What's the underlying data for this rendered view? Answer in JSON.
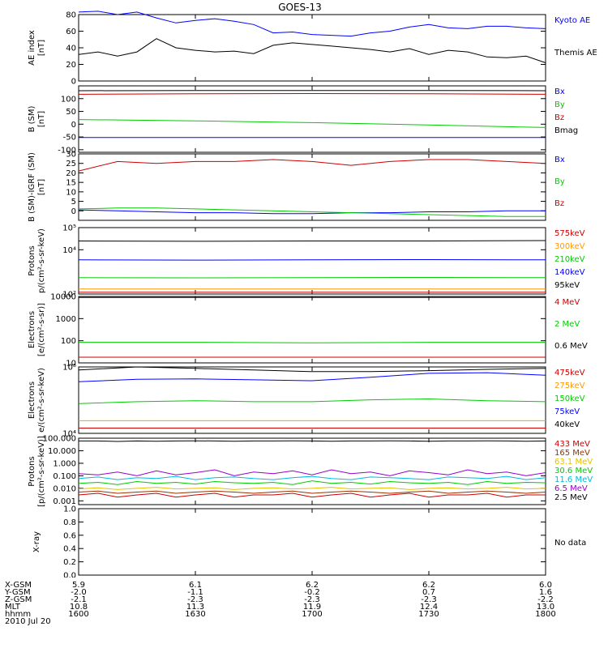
{
  "figure": {
    "title": "GOES-13",
    "date": "2010 Jul 20"
  },
  "chart_data": [
    {
      "type": "line",
      "panel": "AE index",
      "ylabel": [
        "AE index",
        "[nT]"
      ],
      "ylim": [
        0,
        80
      ],
      "scale": "linear",
      "ticks": [
        0,
        20,
        40,
        60,
        80
      ],
      "tick_labels": [
        "0",
        "20",
        "40",
        "60",
        "80"
      ],
      "x": [
        1600,
        1605,
        1610,
        1615,
        1620,
        1625,
        1630,
        1635,
        1640,
        1645,
        1650,
        1655,
        1700,
        1705,
        1710,
        1715,
        1720,
        1725,
        1730,
        1735,
        1740,
        1745,
        1750,
        1755,
        1800
      ],
      "series": [
        {
          "name": "Kyoto AE",
          "color": "#0000ff",
          "values": [
            83,
            84,
            80,
            83,
            76,
            70,
            73,
            75,
            72,
            68,
            58,
            59,
            56,
            55,
            54,
            58,
            60,
            65,
            68,
            64,
            63,
            66,
            66,
            64,
            63
          ]
        },
        {
          "name": "Themis AE",
          "color": "#000000",
          "values": [
            32,
            35,
            30,
            35,
            51,
            40,
            37,
            35,
            36,
            33,
            43,
            46,
            44,
            42,
            40,
            38,
            35,
            39,
            32,
            37,
            35,
            29,
            28,
            30,
            22
          ]
        }
      ]
    },
    {
      "type": "line",
      "panel": "B (SM)",
      "ylabel": [
        "B (SM)",
        "[nT]"
      ],
      "ylim": [
        -110,
        150
      ],
      "scale": "linear",
      "ticks": [
        -100,
        -50,
        0,
        50,
        100
      ],
      "tick_labels": [
        "-100",
        "-50",
        "0",
        "50",
        "100"
      ],
      "x": [
        1600,
        1630,
        1700,
        1730,
        1800
      ],
      "series": [
        {
          "name": "Bx",
          "color": "#0000ff",
          "values": [
            -52,
            -52,
            -52,
            -52,
            -52
          ]
        },
        {
          "name": "By",
          "color": "#00cc00",
          "values": [
            18,
            13,
            6,
            -3,
            -13
          ]
        },
        {
          "name": "Bz",
          "color": "#cc0000",
          "values": [
            117,
            119,
            120,
            119,
            117
          ]
        },
        {
          "name": "Bmag",
          "color": "#000000",
          "values": [
            131,
            132,
            132,
            132,
            131
          ]
        }
      ]
    },
    {
      "type": "line",
      "panel": "B (SM)-IGRF (SM)",
      "ylabel": [
        "B (SM)-IGRF (SM)",
        "[nT]"
      ],
      "ylim": [
        -5,
        30
      ],
      "scale": "linear",
      "ticks": [
        0,
        5,
        10,
        15,
        20,
        25,
        30
      ],
      "tick_labels": [
        "0",
        "5",
        "10",
        "15",
        "20",
        "25",
        "30"
      ],
      "x": [
        1600,
        1610,
        1620,
        1630,
        1640,
        1650,
        1700,
        1710,
        1720,
        1730,
        1740,
        1750,
        1800
      ],
      "series": [
        {
          "name": "Bx",
          "color": "#0000ff",
          "values": [
            0.5,
            0,
            -0.5,
            -1,
            -1,
            -1.5,
            -1.5,
            -1,
            -1,
            -0.5,
            -0.5,
            0,
            0
          ]
        },
        {
          "name": "By",
          "color": "#00cc00",
          "values": [
            1,
            1.5,
            1.5,
            1,
            0.5,
            0,
            -0.5,
            -1,
            -1.5,
            -2,
            -2.5,
            -3,
            -3
          ]
        },
        {
          "name": "Bz",
          "color": "#cc0000",
          "values": [
            21,
            26,
            25,
            26,
            26,
            27,
            26,
            24,
            26,
            27,
            27,
            26,
            25
          ]
        }
      ]
    },
    {
      "type": "line",
      "panel": "Protons keV",
      "ylabel": [
        "Protons",
        "p/(cm²-s-sr-keV)"
      ],
      "ylim": [
        100,
        100000
      ],
      "scale": "log",
      "ticks": [
        100,
        10000,
        100000
      ],
      "tick_labels": [
        "10²",
        "10⁴",
        "10⁵"
      ],
      "x": [
        1600,
        1630,
        1700,
        1730,
        1800
      ],
      "series": [
        {
          "name": "575keV",
          "color": "#cc0000",
          "values": [
            120,
            120,
            120,
            120,
            120
          ]
        },
        {
          "name": "300keV",
          "color": "#ff9900",
          "values": [
            170,
            170,
            170,
            170,
            170
          ]
        },
        {
          "name": "210keV",
          "color": "#00cc00",
          "values": [
            550,
            540,
            550,
            560,
            550
          ]
        },
        {
          "name": "140keV",
          "color": "#0000ff",
          "values": [
            3500,
            3400,
            3500,
            3600,
            3500
          ]
        },
        {
          "name": "95keV",
          "color": "#000000",
          "values": [
            25000,
            24000,
            25000,
            25000,
            26000
          ]
        }
      ]
    },
    {
      "type": "line",
      "panel": "Electrons MeV",
      "ylabel": [
        "Electrons",
        "[e/(cm²-s-sr)]"
      ],
      "ylim": [
        10,
        10000
      ],
      "scale": "log",
      "ticks": [
        10,
        100,
        1000,
        10000
      ],
      "tick_labels": [
        "10",
        "100",
        "1000",
        "10000"
      ],
      "x": [
        1600,
        1630,
        1700,
        1730,
        1800
      ],
      "series": [
        {
          "name": "4 MeV",
          "color": "#cc0000",
          "values": [
            18,
            18,
            18,
            18,
            18
          ]
        },
        {
          "name": "2 MeV",
          "color": "#00cc00",
          "values": [
            85,
            85,
            80,
            85,
            85
          ]
        },
        {
          "name": "0.6 MeV",
          "color": "#000000",
          "values": [
            9000,
            9000,
            9000,
            9000,
            9000
          ]
        }
      ]
    },
    {
      "type": "line",
      "panel": "Electrons keV",
      "ylabel": [
        "Electrons",
        "e/(cm²-s-sr-keV)"
      ],
      "ylim": [
        10000,
        100000
      ],
      "scale": "log",
      "ticks": [
        10000,
        100000
      ],
      "tick_labels": [
        "10⁴",
        "10⁵"
      ],
      "x": [
        1600,
        1615,
        1630,
        1645,
        1700,
        1715,
        1730,
        1745,
        1800
      ],
      "series": [
        {
          "name": "475keV",
          "color": "#cc0000",
          "values": [
            12000,
            12000,
            12000,
            12000,
            12000,
            12000,
            12000,
            12000,
            12000
          ]
        },
        {
          "name": "275keV",
          "color": "#ff9900",
          "values": [
            15500,
            15500,
            15500,
            15500,
            15500,
            15500,
            15500,
            15500,
            15500
          ]
        },
        {
          "name": "150keV",
          "color": "#00cc00",
          "values": [
            28000,
            30000,
            31000,
            30000,
            30000,
            32000,
            33000,
            31000,
            30000
          ]
        },
        {
          "name": "75keV",
          "color": "#0000ff",
          "values": [
            60000,
            65000,
            66000,
            64000,
            62000,
            70000,
            80000,
            82000,
            75000
          ]
        },
        {
          "name": "40keV",
          "color": "#000000",
          "values": [
            90000,
            100000,
            95000,
            90000,
            85000,
            85000,
            88000,
            92000,
            95000
          ]
        }
      ]
    },
    {
      "type": "line",
      "panel": "Protons MeV",
      "ylabel": [
        "Protons",
        "[p/(cm²-s-sr-keV)]"
      ],
      "ylim": [
        0.0005,
        100
      ],
      "scale": "log",
      "ticks": [
        0.001,
        0.01,
        0.1,
        1,
        10,
        100
      ],
      "tick_labels": [
        "0.001",
        "0.010",
        "0.100",
        "1.000",
        "10.000",
        "100.000"
      ],
      "x": [
        1600,
        1605,
        1610,
        1615,
        1620,
        1625,
        1630,
        1635,
        1640,
        1645,
        1650,
        1655,
        1700,
        1705,
        1710,
        1715,
        1720,
        1725,
        1730,
        1735,
        1740,
        1745,
        1750,
        1755,
        1800
      ],
      "series": [
        {
          "name": "433 MeV",
          "color": "#cc0000",
          "values": [
            0.003,
            0.004,
            0.002,
            0.003,
            0.004,
            0.002,
            0.003,
            0.004,
            0.002,
            0.003,
            0.003,
            0.004,
            0.002,
            0.003,
            0.004,
            0.002,
            0.003,
            0.004,
            0.002,
            0.003,
            0.003,
            0.004,
            0.002,
            0.003,
            0.003
          ]
        },
        {
          "name": "165 MeV",
          "color": "#993300",
          "values": [
            0.005,
            0.006,
            0.004,
            0.005,
            0.006,
            0.004,
            0.005,
            0.006,
            0.005,
            0.004,
            0.005,
            0.006,
            0.004,
            0.005,
            0.006,
            0.005,
            0.004,
            0.005,
            0.006,
            0.004,
            0.005,
            0.006,
            0.005,
            0.004,
            0.005
          ]
        },
        {
          "name": "63.1 MeV",
          "color": "#e6c200",
          "values": [
            0.009,
            0.011,
            0.008,
            0.01,
            0.012,
            0.009,
            0.01,
            0.011,
            0.008,
            0.01,
            0.011,
            0.009,
            0.01,
            0.012,
            0.009,
            0.01,
            0.011,
            0.008,
            0.01,
            0.011,
            0.009,
            0.01,
            0.012,
            0.009,
            0.01
          ]
        },
        {
          "name": "30.6 MeV",
          "color": "#00cc00",
          "values": [
            0.025,
            0.03,
            0.02,
            0.035,
            0.025,
            0.03,
            0.022,
            0.035,
            0.028,
            0.025,
            0.03,
            0.02,
            0.04,
            0.025,
            0.03,
            0.022,
            0.035,
            0.028,
            0.025,
            0.03,
            0.02,
            0.035,
            0.025,
            0.03,
            0.028
          ]
        },
        {
          "name": "11.6 MeV",
          "color": "#00bbdd",
          "values": [
            0.06,
            0.08,
            0.05,
            0.07,
            0.06,
            0.09,
            0.05,
            0.07,
            0.08,
            0.06,
            0.05,
            0.07,
            0.09,
            0.06,
            0.05,
            0.08,
            0.07,
            0.06,
            0.05,
            0.08,
            0.07,
            0.06,
            0.09,
            0.05,
            0.07
          ]
        },
        {
          "name": "6.5 MeV",
          "color": "#9900cc",
          "values": [
            0.15,
            0.12,
            0.2,
            0.1,
            0.25,
            0.12,
            0.18,
            0.3,
            0.1,
            0.2,
            0.15,
            0.25,
            0.12,
            0.3,
            0.15,
            0.2,
            0.1,
            0.25,
            0.18,
            0.12,
            0.3,
            0.15,
            0.2,
            0.1,
            0.18
          ]
        },
        {
          "name": "2.5 MeV",
          "color": "#000000",
          "values": [
            60,
            60,
            55,
            60,
            58,
            60,
            62,
            60,
            58,
            60,
            60,
            62,
            60,
            58,
            60,
            60,
            62,
            60,
            58,
            60,
            60,
            62,
            60,
            58,
            60
          ]
        }
      ]
    },
    {
      "type": "line",
      "panel": "X-ray",
      "ylabel": [
        "X-ray"
      ],
      "ylim": [
        0,
        1
      ],
      "scale": "linear",
      "ticks": [
        0,
        0.2,
        0.4,
        0.6,
        0.8,
        1.0
      ],
      "tick_labels": [
        "0.0",
        "0.2",
        "0.4",
        "0.6",
        "0.8",
        "1.0"
      ],
      "x": [],
      "series": [],
      "no_data_text": "No data"
    }
  ],
  "footer": {
    "row_labels": [
      "X-GSM",
      "Y-GSM",
      "Z-GSM",
      "MLT",
      "hhmm"
    ],
    "columns": [
      [
        "5.9",
        "-2.0",
        "-2.1",
        "10.8",
        "1600"
      ],
      [
        "6.1",
        "-1.1",
        "-2.3",
        "11.3",
        "1630"
      ],
      [
        "6.2",
        "-0.2",
        "-2.3",
        "11.9",
        "1700"
      ],
      [
        "6.2",
        "0.7",
        "-2.3",
        "12.4",
        "1730"
      ],
      [
        "6.0",
        "1.6",
        "-2.2",
        "13.0",
        "1800"
      ]
    ]
  }
}
